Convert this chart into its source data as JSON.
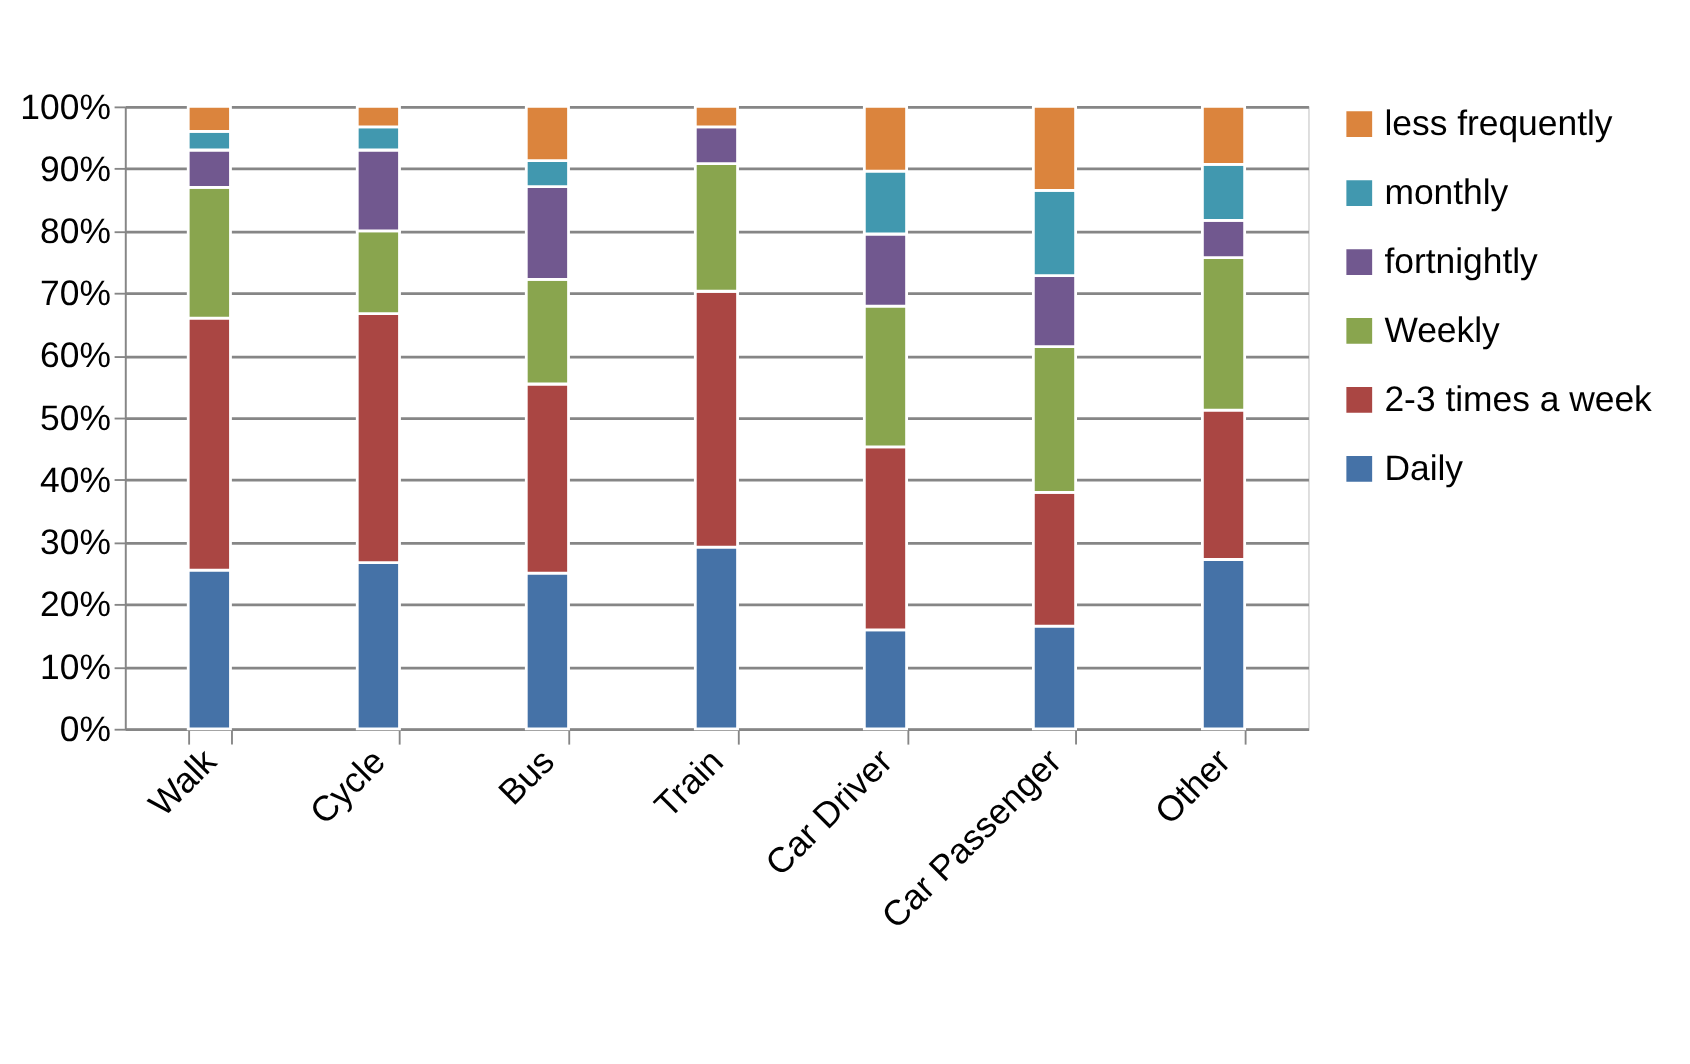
{
  "chart_data": {
    "type": "bar",
    "stacked": true,
    "categories": [
      "Walk",
      "Cycle",
      "Bus",
      "Train",
      "Car Driver",
      "Car Passenger",
      "Other"
    ],
    "series": [
      {
        "name": "Daily",
        "color": "#4572a7",
        "values": [
          25.5,
          26.7,
          25,
          29.2,
          15.9,
          16.5,
          27.2
        ]
      },
      {
        "name": "2-3 times a week",
        "color": "#aa4643",
        "values": [
          40.5,
          40,
          30.4,
          41.1,
          29.4,
          21.5,
          24
        ]
      },
      {
        "name": "Weekly",
        "color": "#89a54e",
        "values": [
          21,
          13.3,
          16.8,
          20.5,
          22.6,
          23.4,
          24.5
        ]
      },
      {
        "name": "fortnightly",
        "color": "#71588f",
        "values": [
          6,
          13,
          14.9,
          5.9,
          11.6,
          11.4,
          6
        ]
      },
      {
        "name": "monthly",
        "color": "#4198af",
        "values": [
          3,
          3.7,
          4.2,
          null,
          10.1,
          13.7,
          9
        ]
      },
      {
        "name": "less frequently",
        "color": "#db843d",
        "values": [
          4,
          3.3,
          8.7,
          3.3,
          10.4,
          13.5,
          9.3
        ]
      }
    ],
    "ylim": [
      0,
      100
    ],
    "yticks": [
      {
        "value": 0,
        "label": "0%"
      },
      {
        "value": 10,
        "label": "10%"
      },
      {
        "value": 20,
        "label": "20%"
      },
      {
        "value": 30,
        "label": "30%"
      },
      {
        "value": 40,
        "label": "40%"
      },
      {
        "value": 50,
        "label": "50%"
      },
      {
        "value": 60,
        "label": "60%"
      },
      {
        "value": 70,
        "label": "70%"
      },
      {
        "value": 80,
        "label": "80%"
      },
      {
        "value": 90,
        "label": "90%"
      },
      {
        "value": 100,
        "label": "100%"
      }
    ],
    "grid": "y",
    "legend": "right"
  }
}
